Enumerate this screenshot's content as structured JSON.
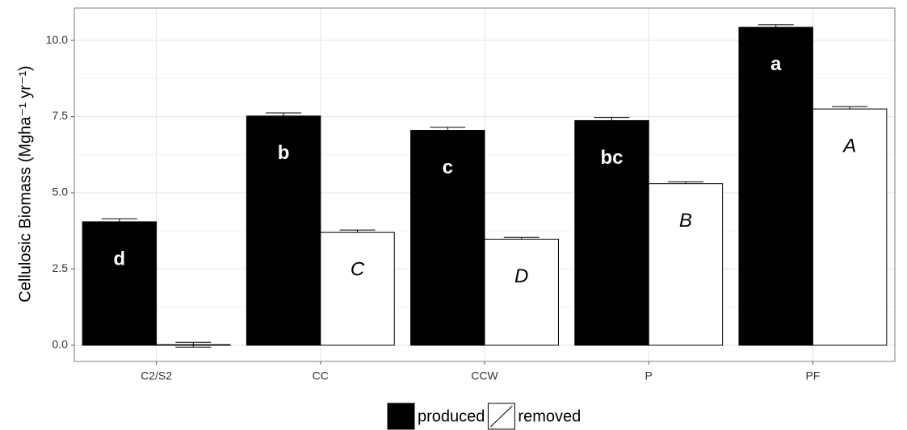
{
  "chart_data": {
    "type": "bar",
    "ylabel": "Cellulosic Biomass (Mgha⁻¹ yr⁻¹)",
    "categories": [
      "C2/S2",
      "CC",
      "CCW",
      "P",
      "PF"
    ],
    "series": [
      {
        "name": "produced",
        "color": "#000000",
        "values": [
          4.05,
          7.52,
          7.05,
          7.37,
          10.43
        ],
        "errors": [
          0.1,
          0.1,
          0.1,
          0.1,
          0.08
        ],
        "letters": [
          "d",
          "b",
          "c",
          "bc",
          "a"
        ]
      },
      {
        "name": "removed",
        "color": "#ffffff",
        "values": [
          0.02,
          3.7,
          3.48,
          5.3,
          7.75
        ],
        "errors": [
          0.08,
          0.08,
          0.06,
          0.06,
          0.08
        ],
        "letters": [
          null,
          "C",
          "D",
          "B",
          "A"
        ]
      }
    ],
    "ylim": [
      -0.53,
      11.06
    ],
    "yticks": [
      {
        "value": 0,
        "label": "0.0"
      },
      {
        "value": 2.5,
        "label": "2.5"
      },
      {
        "value": 5,
        "label": "5.0"
      },
      {
        "value": 7.5,
        "label": "7.5"
      },
      {
        "value": 10,
        "label": "10.0"
      }
    ],
    "grid": true,
    "legend": "bottom"
  }
}
